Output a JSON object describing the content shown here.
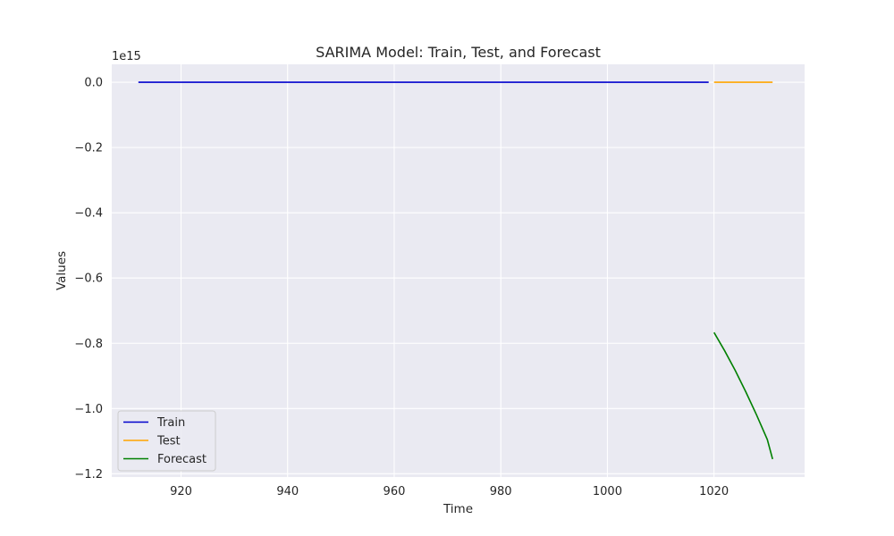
{
  "chart_data": {
    "type": "line",
    "title": "SARIMA Model: Train, Test, and Forecast",
    "xlabel": "Time",
    "ylabel": "Values",
    "y_offset_label": "1e15",
    "xlim": [
      907,
      1037
    ],
    "ylim": [
      -1.21,
      0.055
    ],
    "x_ticks": [
      920,
      940,
      960,
      980,
      1000,
      1020
    ],
    "y_ticks": [
      0.0,
      -0.2,
      -0.4,
      -0.6,
      -0.8,
      -1.0,
      -1.2
    ],
    "y_tick_labels": [
      "0.0",
      "−0.2",
      "−0.4",
      "−0.6",
      "−0.8",
      "−1.0",
      "−1.2"
    ],
    "grid": true,
    "legend_position": "bottom-left",
    "series": [
      {
        "name": "Train",
        "color": "#0000cc",
        "x": [
          912,
          1019
        ],
        "y": [
          0.0,
          0.0
        ]
      },
      {
        "name": "Test",
        "color": "#ffa500",
        "x": [
          1020,
          1031
        ],
        "y": [
          0.0,
          0.0
        ]
      },
      {
        "name": "Forecast",
        "color": "#008000",
        "x": [
          1020,
          1022,
          1024,
          1026,
          1028,
          1030,
          1031
        ],
        "y": [
          -0.767,
          -0.823,
          -0.884,
          -0.95,
          -1.02,
          -1.095,
          -1.155
        ]
      }
    ]
  }
}
